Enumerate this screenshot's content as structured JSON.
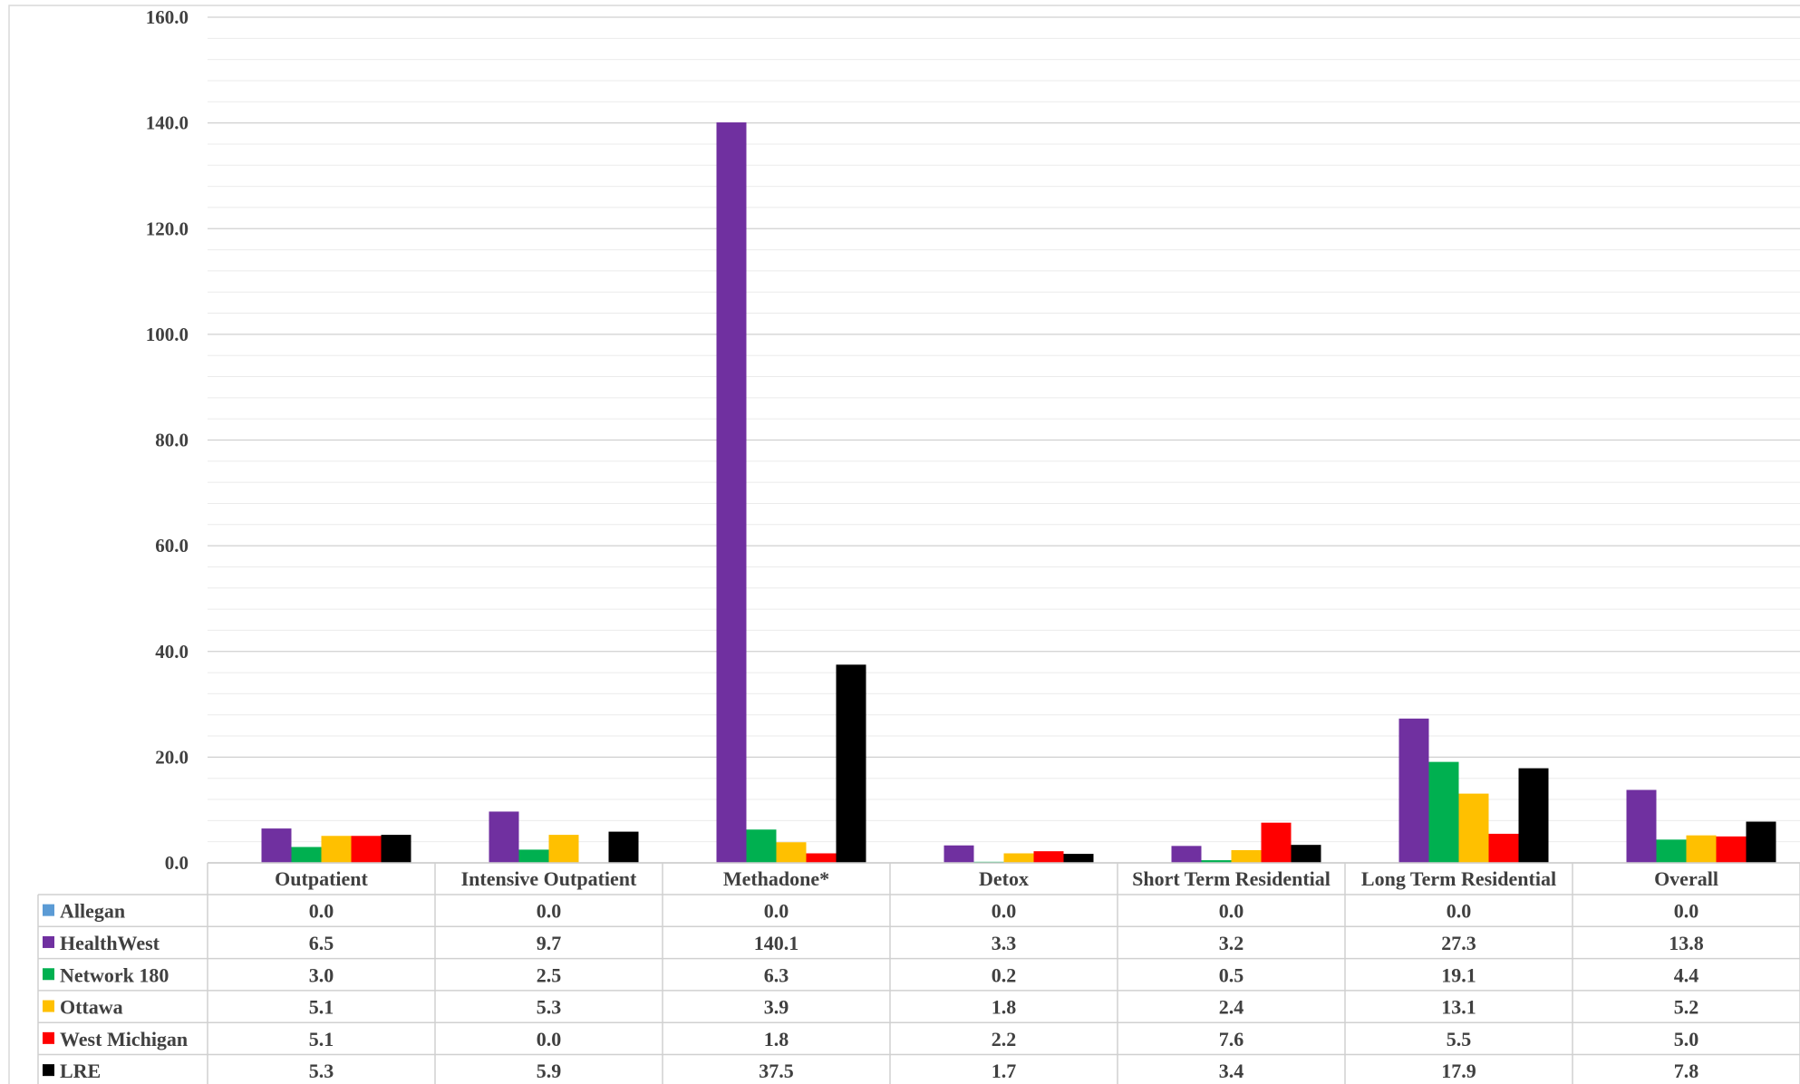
{
  "chart_data": {
    "type": "bar",
    "title": "",
    "xlabel": "",
    "ylabel": "",
    "ylim": [
      0,
      160
    ],
    "yticks": [
      "0.0",
      "20.0",
      "40.0",
      "60.0",
      "80.0",
      "100.0",
      "120.0",
      "140.0",
      "160.0"
    ],
    "grid": true,
    "legend": "data-table",
    "categories": [
      "Outpatient",
      "Intensive Outpatient",
      "Methadone*",
      "Detox",
      "Short Term Residential",
      "Long Term Residential",
      "Overall"
    ],
    "series": [
      {
        "name": "Allegan",
        "color": "#5B9BD5",
        "values": [
          0.0,
          0.0,
          0.0,
          0.0,
          0.0,
          0.0,
          0.0
        ],
        "labels": [
          "0.0",
          "0.0",
          "0.0",
          "0.0",
          "0.0",
          "0.0",
          "0.0"
        ]
      },
      {
        "name": "HealthWest",
        "color": "#7030A0",
        "values": [
          6.5,
          9.7,
          140.1,
          3.3,
          3.2,
          27.3,
          13.8
        ],
        "labels": [
          "6.5",
          "9.7",
          "140.1",
          "3.3",
          "3.2",
          "27.3",
          "13.8"
        ]
      },
      {
        "name": "Network 180",
        "color": "#00B050",
        "values": [
          3.0,
          2.5,
          6.3,
          0.2,
          0.5,
          19.1,
          4.4
        ],
        "labels": [
          "3.0",
          "2.5",
          "6.3",
          "0.2",
          "0.5",
          "19.1",
          "4.4"
        ]
      },
      {
        "name": "Ottawa",
        "color": "#FFC000",
        "values": [
          5.1,
          5.3,
          3.9,
          1.8,
          2.4,
          13.1,
          5.2
        ],
        "labels": [
          "5.1",
          "5.3",
          "3.9",
          "1.8",
          "2.4",
          "13.1",
          "5.2"
        ]
      },
      {
        "name": "West Michigan",
        "color": "#FF0000",
        "values": [
          5.1,
          0.0,
          1.8,
          2.2,
          7.6,
          5.5,
          5.0
        ],
        "labels": [
          "5.1",
          "0.0",
          "1.8",
          "2.2",
          "7.6",
          "5.5",
          "5.0"
        ]
      },
      {
        "name": "LRE",
        "color": "#000000",
        "values": [
          5.3,
          5.9,
          37.5,
          1.7,
          3.4,
          17.9,
          7.8
        ],
        "labels": [
          "5.3",
          "5.9",
          "37.5",
          "1.7",
          "3.4",
          "17.9",
          "7.8"
        ]
      }
    ]
  }
}
